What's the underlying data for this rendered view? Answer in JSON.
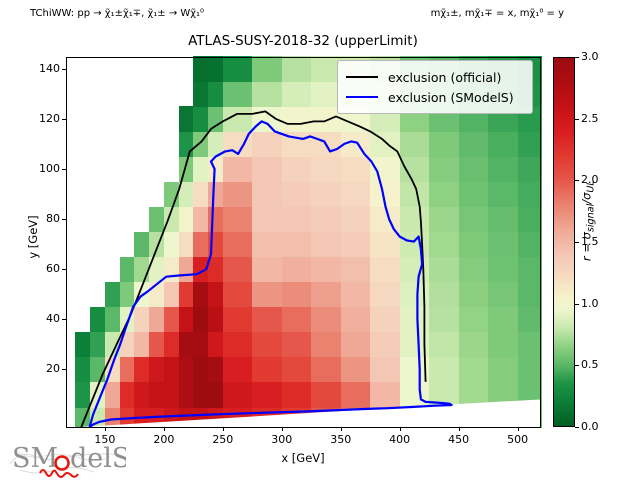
{
  "header": {
    "process_label": "TChiWW: pp → χ̃₁±χ̃₁∓, χ̃₁± → Wχ̃₁⁰",
    "mass_label": "mχ̃₁±, mχ̃₁∓ = x, mχ̃₁⁰ = y",
    "title": "ATLAS-SUSY-2018-32 (upperLimit)"
  },
  "axes": {
    "xlabel": "x [GeV]",
    "ylabel": "y [GeV]",
    "x_ticks": [
      150,
      200,
      250,
      300,
      350,
      400,
      450,
      500
    ],
    "y_ticks": [
      20,
      40,
      60,
      80,
      100,
      120,
      140
    ],
    "x_range": [
      117,
      519
    ],
    "y_range": [
      -3,
      144.7
    ]
  },
  "legend": {
    "entries": [
      {
        "label": "exclusion (official)",
        "color": "#000000"
      },
      {
        "label": "exclusion (SModelS)",
        "color": "#0000ff"
      }
    ]
  },
  "colorbar": {
    "min": 0.0,
    "max": 3.0,
    "ticks": [
      "0.0",
      "0.5",
      "1.0",
      "1.5",
      "2.0",
      "2.5",
      "3.0"
    ],
    "label_parts": {
      "prefix": "r = σ",
      "sub1": "signal",
      "mid": "/σ",
      "sub2": "UL"
    }
  },
  "logo": {
    "text_sm": "SM",
    "text_dels": "delS"
  },
  "chart_data": {
    "type": "heatmap",
    "title": "ATLAS-SUSY-2018-32 (upperLimit)",
    "xlabel": "x [GeV]",
    "ylabel": "y [GeV]",
    "zlabel": "r = sigma_signal / sigma_UL",
    "zlim": [
      0,
      3
    ],
    "x_edges": [
      125,
      137.5,
      150,
      162.5,
      175,
      187.5,
      200,
      212.5,
      225,
      237.5,
      250,
      275,
      300,
      325,
      350,
      375,
      400,
      425,
      450,
      475,
      500,
      520
    ],
    "y_edges": [
      -3,
      5,
      15,
      25,
      35,
      45,
      55,
      65,
      75,
      85,
      95,
      105,
      115,
      125,
      135,
      145
    ],
    "values_rows_bottom_to_top": [
      [
        0.5,
        0.8,
        1.8,
        2.2,
        2.4,
        2.4,
        2.5,
        2.6,
        2.6,
        2.5,
        2.4,
        2.3,
        2.2,
        2.0,
        1.8,
        1.5,
        0.9,
        0.75,
        0.65,
        0.6,
        0.55
      ],
      [
        0.35,
        0.9,
        1.6,
        2.3,
        2.5,
        2.6,
        2.6,
        2.8,
        3.0,
        3.0,
        2.5,
        2.4,
        2.3,
        2.1,
        1.9,
        1.5,
        0.95,
        0.8,
        0.7,
        0.62,
        0.55
      ],
      [
        0.3,
        0.5,
        1.2,
        1.9,
        2.3,
        2.5,
        2.6,
        2.8,
        3.0,
        2.9,
        2.4,
        2.2,
        2.1,
        1.9,
        1.7,
        1.4,
        0.95,
        0.8,
        0.7,
        0.62,
        0.55
      ],
      [
        0.2,
        0.4,
        0.8,
        1.3,
        1.5,
        2.0,
        2.3,
        2.9,
        2.9,
        2.5,
        2.3,
        2.1,
        2.0,
        1.8,
        1.6,
        1.35,
        0.9,
        0.78,
        0.68,
        0.6,
        0.55
      ],
      [
        null,
        0.3,
        0.5,
        0.9,
        1.3,
        1.6,
        2.0,
        2.6,
        3.0,
        2.7,
        2.2,
        2.0,
        1.9,
        1.75,
        1.55,
        1.3,
        0.9,
        0.75,
        0.66,
        0.6,
        0.52
      ],
      [
        null,
        null,
        0.4,
        0.6,
        0.95,
        1.1,
        1.4,
        2.2,
        2.9,
        2.6,
        2.1,
        1.7,
        1.75,
        1.65,
        1.5,
        1.25,
        0.88,
        0.74,
        0.64,
        0.58,
        0.5
      ],
      [
        null,
        null,
        null,
        0.5,
        0.7,
        0.9,
        1.1,
        1.6,
        2.4,
        2.3,
        2.0,
        1.5,
        1.55,
        1.5,
        1.45,
        1.2,
        0.85,
        0.72,
        0.62,
        0.56,
        0.5
      ],
      [
        null,
        null,
        null,
        null,
        0.5,
        0.75,
        0.95,
        1.2,
        1.9,
        2.1,
        1.9,
        1.45,
        1.45,
        1.4,
        1.35,
        1.15,
        0.82,
        0.7,
        0.6,
        0.55,
        0.48
      ],
      [
        null,
        null,
        null,
        null,
        null,
        0.55,
        0.8,
        1.0,
        1.5,
        1.9,
        1.8,
        1.4,
        1.4,
        1.35,
        1.3,
        1.1,
        0.8,
        0.68,
        0.58,
        0.53,
        0.46
      ],
      [
        null,
        null,
        null,
        null,
        null,
        null,
        0.6,
        0.85,
        1.2,
        1.6,
        1.7,
        1.4,
        1.35,
        1.3,
        1.25,
        1.05,
        0.78,
        0.65,
        0.56,
        0.5,
        0.45
      ],
      [
        null,
        null,
        null,
        null,
        null,
        null,
        null,
        0.6,
        0.9,
        1.1,
        1.5,
        1.4,
        1.3,
        1.25,
        1.2,
        1.0,
        0.75,
        0.62,
        0.54,
        0.48,
        0.43
      ],
      [
        null,
        null,
        null,
        null,
        null,
        null,
        null,
        0.35,
        0.6,
        0.85,
        1.2,
        1.3,
        1.2,
        1.2,
        1.1,
        0.9,
        0.72,
        0.6,
        0.52,
        0.46,
        0.4
      ],
      [
        null,
        null,
        null,
        null,
        null,
        null,
        null,
        0.15,
        0.3,
        0.55,
        0.8,
        0.95,
        1.0,
        1.0,
        0.95,
        0.85,
        0.65,
        0.55,
        0.48,
        0.42,
        0.38
      ],
      [
        null,
        null,
        null,
        null,
        null,
        null,
        null,
        null,
        0.15,
        0.3,
        0.55,
        0.75,
        0.85,
        0.9,
        0.85,
        0.8,
        0.6,
        0.52,
        0.45,
        0.4,
        0.35
      ],
      [
        null,
        null,
        null,
        null,
        null,
        null,
        null,
        null,
        0.1,
        0.12,
        0.3,
        0.6,
        0.75,
        0.8,
        0.8,
        0.75,
        0.55,
        0.5,
        0.42,
        0.38,
        0.33
      ]
    ],
    "colormap_stops": [
      [
        0.0,
        "#005f24"
      ],
      [
        0.2,
        "#0c7f38"
      ],
      [
        0.35,
        "#1d9447"
      ],
      [
        0.5,
        "#5bb868"
      ],
      [
        0.65,
        "#8fd183"
      ],
      [
        0.8,
        "#c9e9ae"
      ],
      [
        0.95,
        "#eef6cd"
      ],
      [
        1.05,
        "#f6f2cb"
      ],
      [
        1.2,
        "#f6ddc2"
      ],
      [
        1.4,
        "#f4c6b4"
      ],
      [
        1.6,
        "#f0a896"
      ],
      [
        1.8,
        "#ea8270"
      ],
      [
        2.0,
        "#e5574a"
      ],
      [
        2.2,
        "#e13a30"
      ],
      [
        2.4,
        "#d81e20"
      ],
      [
        2.6,
        "#c51217"
      ],
      [
        2.8,
        "#ad0d13"
      ],
      [
        3.0,
        "#9c0c11"
      ]
    ],
    "bottom_no_data_boundary": [
      [
        129,
        -3
      ],
      [
        442,
        6
      ],
      [
        519,
        8
      ]
    ],
    "curves": [
      {
        "name": "exclusion (official)",
        "color": "#000000",
        "points": [
          [
            130,
            -3
          ],
          [
            136,
            4
          ],
          [
            148,
            18
          ],
          [
            160,
            30
          ],
          [
            172,
            42
          ],
          [
            183,
            55
          ],
          [
            193,
            67
          ],
          [
            203,
            79
          ],
          [
            213,
            92
          ],
          [
            222,
            107
          ],
          [
            232,
            111
          ],
          [
            240,
            116
          ],
          [
            250,
            119
          ],
          [
            262,
            122
          ],
          [
            275,
            122
          ],
          [
            286,
            123
          ],
          [
            295,
            120
          ],
          [
            305,
            118
          ],
          [
            316,
            118
          ],
          [
            327,
            119
          ],
          [
            336,
            119
          ],
          [
            346,
            121
          ],
          [
            356,
            119
          ],
          [
            366,
            117
          ],
          [
            375,
            115
          ],
          [
            385,
            112
          ],
          [
            392,
            109
          ],
          [
            398,
            107
          ],
          [
            404,
            101
          ],
          [
            410,
            96
          ],
          [
            414,
            92
          ],
          [
            417,
            85
          ],
          [
            418,
            79
          ],
          [
            419,
            70
          ],
          [
            420,
            60
          ],
          [
            421,
            45
          ],
          [
            421,
            30
          ],
          [
            422,
            15
          ]
        ]
      },
      {
        "name": "exclusion (SModelS)",
        "color": "#0000ff",
        "points": [
          [
            137,
            -3
          ],
          [
            140,
            2
          ],
          [
            146,
            9
          ],
          [
            152,
            16
          ],
          [
            158,
            24
          ],
          [
            163,
            30
          ],
          [
            168,
            37
          ],
          [
            171,
            41
          ],
          [
            174,
            45
          ],
          [
            180,
            49
          ],
          [
            186,
            51
          ],
          [
            194,
            54
          ],
          [
            202,
            57
          ],
          [
            214,
            57.5
          ],
          [
            228,
            58
          ],
          [
            236,
            60
          ],
          [
            240,
            66
          ],
          [
            241,
            78
          ],
          [
            242,
            90
          ],
          [
            243,
            100
          ],
          [
            240,
            103
          ],
          [
            244,
            105
          ],
          [
            252,
            107
          ],
          [
            258,
            107.5
          ],
          [
            263,
            106
          ],
          [
            268,
            110
          ],
          [
            272,
            114
          ],
          [
            278,
            117
          ],
          [
            283,
            119
          ],
          [
            288,
            118
          ],
          [
            294,
            115
          ],
          [
            300,
            114
          ],
          [
            306,
            113
          ],
          [
            312,
            112.5
          ],
          [
            318,
            112
          ],
          [
            324,
            113
          ],
          [
            330,
            112
          ],
          [
            336,
            111
          ],
          [
            341,
            107
          ],
          [
            347,
            108
          ],
          [
            353,
            110
          ],
          [
            359,
            111
          ],
          [
            364,
            110.5
          ],
          [
            370,
            106
          ],
          [
            376,
            103
          ],
          [
            381,
            99
          ],
          [
            385,
            92
          ],
          [
            388,
            85
          ],
          [
            391,
            80
          ],
          [
            395,
            76
          ],
          [
            400,
            73
          ],
          [
            406,
            71.5
          ],
          [
            412,
            71
          ],
          [
            416,
            73
          ],
          [
            418,
            68
          ],
          [
            419,
            62
          ],
          [
            416,
            57
          ],
          [
            415,
            50
          ],
          [
            415,
            40
          ],
          [
            416,
            30
          ],
          [
            417,
            20
          ],
          [
            417,
            12
          ],
          [
            418,
            8
          ],
          [
            422,
            7
          ],
          [
            430,
            6.8
          ],
          [
            438,
            6.5
          ],
          [
            442,
            6.3
          ],
          [
            444,
            5.8
          ],
          [
            430,
            5.5
          ],
          [
            410,
            5
          ],
          [
            390,
            4.5
          ],
          [
            370,
            4.2
          ],
          [
            350,
            3.8
          ],
          [
            320,
            3.2
          ],
          [
            290,
            2.8
          ],
          [
            260,
            2.3
          ],
          [
            230,
            1.8
          ],
          [
            200,
            1.2
          ],
          [
            175,
            0.6
          ],
          [
            155,
            0
          ],
          [
            145,
            -1
          ],
          [
            140,
            -2
          ],
          [
            137,
            -3
          ]
        ]
      }
    ]
  }
}
